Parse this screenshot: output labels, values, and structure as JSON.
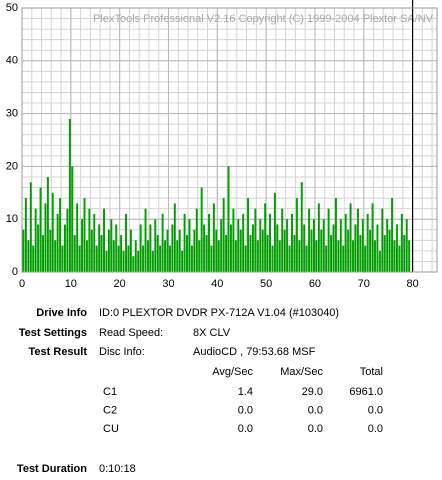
{
  "chart_data": {
    "type": "bar",
    "title": "PlexTools Professional V2.16 Copyright (C) 1999-2004 Plextor SA/NV",
    "x": [
      0.5,
      1,
      1.5,
      2,
      2.5,
      3,
      3.5,
      4,
      4.5,
      5,
      5.5,
      6,
      6.5,
      7,
      7.5,
      8,
      8.5,
      9,
      9.5,
      10,
      10.5,
      11,
      11.5,
      12,
      12.5,
      13,
      13.5,
      14,
      14.5,
      15,
      15.5,
      16,
      16.5,
      17,
      17.5,
      18,
      18.5,
      19,
      19.5,
      20,
      20.5,
      21,
      21.5,
      22,
      22.5,
      23,
      23.5,
      24,
      24.5,
      25,
      25.5,
      26,
      26.5,
      27,
      27.5,
      28,
      28.5,
      29,
      29.5,
      30,
      30.5,
      31,
      31.5,
      32,
      32.5,
      33,
      33.5,
      34,
      34.5,
      35,
      35.5,
      36,
      36.5,
      37,
      37.5,
      38,
      38.5,
      39,
      39.5,
      40,
      40.5,
      41,
      41.5,
      42,
      42.5,
      43,
      43.5,
      44,
      44.5,
      45,
      45.5,
      46,
      46.5,
      47,
      47.5,
      48,
      48.5,
      49,
      49.5,
      50,
      50.5,
      51,
      51.5,
      52,
      52.5,
      53,
      53.5,
      54,
      54.5,
      55,
      55.5,
      56,
      56.5,
      57,
      57.5,
      58,
      58.5,
      59,
      59.5,
      60,
      60.5,
      61,
      61.5,
      62,
      62.5,
      63,
      63.5,
      64,
      64.5,
      65,
      65.5,
      66,
      66.5,
      67,
      67.5,
      68,
      68.5,
      69,
      69.5,
      70,
      70.5,
      71,
      71.5,
      72,
      72.5,
      73,
      73.5,
      74,
      74.5,
      75,
      75.5,
      76,
      76.5,
      77,
      77.5,
      78,
      78.5,
      79,
      79.5
    ],
    "series": [
      {
        "name": "C1",
        "color": "#00a000",
        "values": [
          8,
          14,
          6,
          17,
          5,
          12,
          9,
          16,
          7,
          13,
          18,
          8,
          15,
          6,
          11,
          14,
          5,
          9,
          12,
          29,
          20,
          7,
          13,
          5,
          10,
          14,
          6,
          12,
          8,
          11,
          5,
          9,
          7,
          12,
          4,
          8,
          10,
          6,
          9,
          5,
          7,
          4,
          11,
          5,
          8,
          3,
          6,
          4,
          9,
          5,
          12,
          6,
          9,
          4,
          10,
          7,
          5,
          11,
          6,
          8,
          5,
          9,
          13,
          6,
          8,
          4,
          11,
          7,
          10,
          5,
          8,
          12,
          6,
          16,
          9,
          7,
          11,
          5,
          13,
          8,
          6,
          10,
          14,
          7,
          20,
          9,
          12,
          6,
          10,
          8,
          11,
          5,
          14,
          7,
          9,
          12,
          6,
          10,
          8,
          13,
          7,
          11,
          5,
          15,
          9,
          6,
          12,
          8,
          10,
          5,
          11,
          7,
          14,
          6,
          17,
          9,
          5,
          12,
          8,
          10,
          6,
          13,
          8,
          10,
          5,
          12,
          7,
          9,
          14,
          6,
          10,
          5,
          11,
          8,
          13,
          6,
          9,
          12,
          7,
          10,
          5,
          11,
          8,
          13,
          6,
          9,
          4,
          12,
          7,
          10,
          8,
          14,
          6,
          9,
          5,
          11,
          7,
          10,
          6
        ]
      }
    ],
    "xlim": [
      0,
      85
    ],
    "ylim": [
      0,
      50
    ],
    "xticks": [
      0,
      10,
      20,
      30,
      40,
      50,
      60,
      70,
      80
    ],
    "yticks": [
      0,
      10,
      20,
      30,
      40,
      50
    ],
    "grid": true
  },
  "info": {
    "drive": {
      "label": "Drive Info",
      "value": "ID:0 PLEXTOR DVDR PX-712A V1.04 (#103040)"
    },
    "settings": {
      "label": "Test Settings",
      "key": "Read Speed:",
      "value": "8X CLV"
    },
    "result": {
      "label": "Test Result",
      "key": "Disc Info:",
      "value": "AudioCD , 79:53.68 MSF"
    },
    "table": {
      "header": [
        "Avg/Sec",
        "Max/Sec",
        "Total"
      ],
      "rows": [
        [
          "C1",
          "1.4",
          "29.0",
          "6961.0"
        ],
        [
          "C2",
          "0.0",
          "0.0",
          "0.0"
        ],
        [
          "CU",
          "0.0",
          "0.0",
          "0.0"
        ]
      ]
    },
    "duration": {
      "label": "Test Duration",
      "value": "0:10:18"
    }
  }
}
